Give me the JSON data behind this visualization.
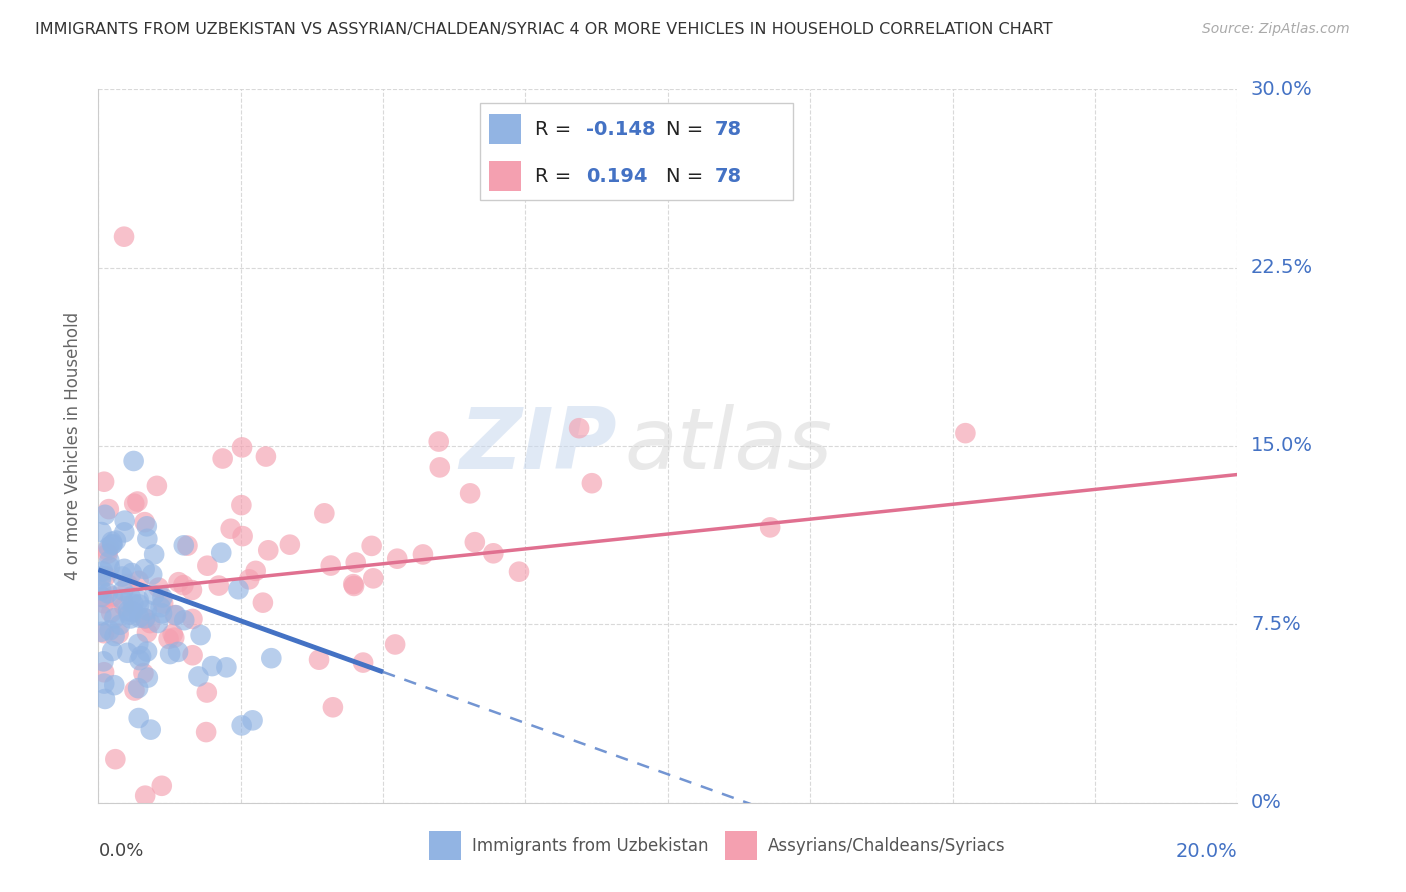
{
  "title": "IMMIGRANTS FROM UZBEKISTAN VS ASSYRIAN/CHALDEAN/SYRIAC 4 OR MORE VEHICLES IN HOUSEHOLD CORRELATION CHART",
  "source": "Source: ZipAtlas.com",
  "r_uzbek": -0.148,
  "n_uzbek": 78,
  "r_assyrian": 0.194,
  "n_assyrian": 78,
  "legend_label_uzbek": "Immigrants from Uzbekistan",
  "legend_label_assyrian": "Assyrians/Chaldeans/Syriacs",
  "color_uzbek": "#92b4e3",
  "color_assyrian": "#f4a0b0",
  "color_uzbek_line": "#4472c4",
  "color_assyrian_line": "#e07090",
  "watermark_zip": "ZIP",
  "watermark_atlas": "atlas",
  "background_color": "#ffffff",
  "xlim": [
    0.0,
    0.2
  ],
  "ylim": [
    0.0,
    0.3
  ],
  "ytick_vals": [
    0.0,
    0.075,
    0.15,
    0.225,
    0.3
  ],
  "ytick_labels": [
    "0%",
    "7.5%",
    "15.0%",
    "22.5%",
    "30.0%"
  ],
  "xtick_vals": [
    0.0,
    0.025,
    0.05,
    0.075,
    0.1,
    0.125,
    0.15,
    0.175,
    0.2
  ],
  "uzbek_line_x0": 0.0,
  "uzbek_line_y0": 0.098,
  "uzbek_line_x1": 0.05,
  "uzbek_line_y1": 0.055,
  "uzbek_line_solid_end": 0.05,
  "uzbek_line_dash_end": 0.2,
  "assyrian_line_x0": 0.0,
  "assyrian_line_y0": 0.088,
  "assyrian_line_x1": 0.2,
  "assyrian_line_y1": 0.138
}
